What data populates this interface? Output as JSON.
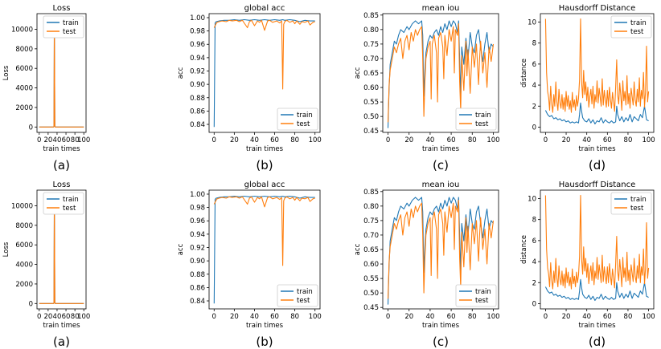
{
  "figure": {
    "colors": {
      "train": "#1f77b4",
      "test": "#ff7f0e"
    },
    "rows": 2,
    "note": "Figure contains two identical rows of four panels"
  },
  "chart_data": [
    {
      "type": "line",
      "panel": "loss",
      "title": "Loss",
      "caption": "(a)",
      "xlabel": "train times",
      "ylabel": "Loss",
      "xlim": [
        -5,
        105
      ],
      "ylim": [
        -550,
        11600
      ],
      "xticks": [
        0,
        20,
        40,
        60,
        80,
        100
      ],
      "xtick_labels": [
        "0",
        "20",
        "40",
        "60",
        "80",
        "100"
      ],
      "yticks": [
        0,
        2000,
        4000,
        6000,
        8000,
        10000
      ],
      "ytick_labels": [
        "0",
        "2000",
        "4000",
        "6000",
        "8000",
        "10000"
      ],
      "legend": {
        "position": "upper-right",
        "entries": [
          "train",
          "test"
        ]
      },
      "series": [
        {
          "name": "train",
          "x": [
            0,
            32,
            33,
            34,
            35,
            36,
            37,
            100
          ],
          "y": [
            0,
            0,
            40,
            11000,
            60,
            0,
            0,
            0
          ]
        },
        {
          "name": "test",
          "x": [
            0,
            32,
            33,
            34,
            35,
            36,
            37,
            100
          ],
          "y": [
            0,
            0,
            60,
            11000,
            80,
            0,
            0,
            0
          ]
        }
      ]
    },
    {
      "type": "line",
      "panel": "global-acc",
      "title": "global acc",
      "caption": "(b)",
      "xlabel": "train times",
      "ylabel": "acc",
      "xlim": [
        -5,
        105
      ],
      "ylim": [
        0.828,
        1.006
      ],
      "xticks": [
        0,
        20,
        40,
        60,
        80,
        100
      ],
      "xtick_labels": [
        "0",
        "20",
        "40",
        "60",
        "80",
        "100"
      ],
      "yticks": [
        0.84,
        0.86,
        0.88,
        0.9,
        0.92,
        0.94,
        0.96,
        0.98,
        1.0
      ],
      "ytick_labels": [
        "0.84",
        "0.86",
        "0.88",
        "0.90",
        "0.92",
        "0.94",
        "0.96",
        "0.98",
        "1.00"
      ],
      "legend": {
        "position": "lower-right",
        "entries": [
          "train",
          "test"
        ]
      },
      "series": [
        {
          "name": "train",
          "x": [
            0,
            1,
            2,
            5,
            10,
            15,
            20,
            25,
            30,
            35,
            40,
            45,
            50,
            55,
            60,
            65,
            68,
            70,
            75,
            80,
            85,
            90,
            95,
            100
          ],
          "y": [
            0.836,
            0.992,
            0.994,
            0.995,
            0.996,
            0.996,
            0.997,
            0.996,
            0.997,
            0.996,
            0.997,
            0.996,
            0.997,
            0.996,
            0.997,
            0.996,
            0.997,
            0.996,
            0.997,
            0.996,
            0.994,
            0.996,
            0.995,
            0.995
          ]
        },
        {
          "name": "test",
          "x": [
            0,
            2,
            3,
            5,
            8,
            12,
            15,
            18,
            22,
            25,
            28,
            33,
            35,
            37,
            40,
            43,
            45,
            47,
            50,
            53,
            55,
            58,
            62,
            65,
            67,
            68,
            69,
            70,
            72,
            75,
            78,
            80,
            82,
            85,
            87,
            90,
            93,
            95,
            98,
            100
          ],
          "y": [
            0.985,
            0.991,
            0.993,
            0.994,
            0.995,
            0.994,
            0.996,
            0.995,
            0.996,
            0.994,
            0.996,
            0.985,
            0.994,
            0.996,
            0.988,
            0.995,
            0.993,
            0.996,
            0.981,
            0.995,
            0.996,
            0.993,
            0.995,
            0.992,
            0.995,
            0.893,
            0.99,
            0.994,
            0.996,
            0.993,
            0.995,
            0.991,
            0.995,
            0.99,
            0.994,
            0.993,
            0.995,
            0.989,
            0.993,
            0.994
          ]
        }
      ]
    },
    {
      "type": "line",
      "panel": "mean-iou",
      "title": "mean iou",
      "caption": "(c)",
      "xlabel": "train times",
      "ylabel": "acc",
      "xlim": [
        -5,
        105
      ],
      "ylim": [
        0.445,
        0.855
      ],
      "xticks": [
        0,
        20,
        40,
        60,
        80,
        100
      ],
      "xtick_labels": [
        "0",
        "20",
        "40",
        "60",
        "80",
        "100"
      ],
      "yticks": [
        0.45,
        0.5,
        0.55,
        0.6,
        0.65,
        0.7,
        0.75,
        0.8,
        0.85
      ],
      "ytick_labels": [
        "0.45",
        "0.50",
        "0.55",
        "0.60",
        "0.65",
        "0.70",
        "0.75",
        "0.80",
        "0.85"
      ],
      "legend": {
        "position": "lower-right",
        "entries": [
          "train",
          "test"
        ]
      },
      "series": [
        {
          "name": "train",
          "x": [
            0,
            1,
            2,
            4,
            6,
            8,
            10,
            12,
            15,
            18,
            20,
            23,
            26,
            29,
            32,
            33,
            34,
            35,
            36,
            38,
            40,
            42,
            44,
            46,
            48,
            50,
            52,
            54,
            56,
            58,
            60,
            62,
            64,
            66,
            67,
            68,
            69,
            70,
            72,
            74,
            76,
            78,
            80,
            82,
            84,
            86,
            88,
            90,
            92,
            94,
            96,
            98,
            100
          ],
          "y": [
            0.46,
            0.6,
            0.68,
            0.72,
            0.76,
            0.75,
            0.78,
            0.8,
            0.79,
            0.81,
            0.8,
            0.82,
            0.83,
            0.82,
            0.83,
            0.78,
            0.57,
            0.66,
            0.72,
            0.76,
            0.78,
            0.77,
            0.79,
            0.8,
            0.78,
            0.81,
            0.79,
            0.82,
            0.8,
            0.83,
            0.81,
            0.83,
            0.82,
            0.79,
            0.83,
            0.7,
            0.57,
            0.74,
            0.68,
            0.77,
            0.7,
            0.79,
            0.74,
            0.72,
            0.78,
            0.8,
            0.74,
            0.69,
            0.75,
            0.79,
            0.72,
            0.75,
            0.74
          ]
        },
        {
          "name": "test",
          "x": [
            0,
            1,
            2,
            4,
            6,
            8,
            10,
            12,
            14,
            16,
            18,
            20,
            22,
            24,
            26,
            28,
            30,
            32,
            33,
            34,
            35,
            36,
            38,
            40,
            41,
            42,
            44,
            46,
            47,
            48,
            50,
            52,
            53,
            54,
            56,
            58,
            60,
            62,
            63,
            64,
            66,
            67,
            68,
            69,
            70,
            72,
            74,
            75,
            76,
            78,
            80,
            82,
            84,
            86,
            87,
            88,
            90,
            92,
            94,
            96,
            98,
            100
          ],
          "y": [
            0.48,
            0.61,
            0.66,
            0.7,
            0.74,
            0.72,
            0.75,
            0.77,
            0.7,
            0.76,
            0.78,
            0.73,
            0.79,
            0.76,
            0.8,
            0.78,
            0.8,
            0.81,
            0.7,
            0.5,
            0.62,
            0.7,
            0.74,
            0.76,
            0.56,
            0.75,
            0.78,
            0.72,
            0.55,
            0.77,
            0.79,
            0.74,
            0.63,
            0.78,
            0.71,
            0.8,
            0.76,
            0.81,
            0.65,
            0.8,
            0.78,
            0.82,
            0.62,
            0.52,
            0.71,
            0.59,
            0.76,
            0.64,
            0.73,
            0.58,
            0.74,
            0.67,
            0.75,
            0.61,
            0.7,
            0.76,
            0.65,
            0.72,
            0.6,
            0.74,
            0.69,
            0.75
          ]
        }
      ]
    },
    {
      "type": "line",
      "panel": "hausdorff",
      "title": "Hausdorff Distance",
      "caption": "(d)",
      "xlabel": "train times",
      "ylabel": "distance",
      "xlim": [
        -5,
        105
      ],
      "ylim": [
        -0.5,
        10.8
      ],
      "xticks": [
        0,
        20,
        40,
        60,
        80,
        100
      ],
      "xtick_labels": [
        "0",
        "20",
        "40",
        "60",
        "80",
        "100"
      ],
      "yticks": [
        0,
        2,
        4,
        6,
        8,
        10
      ],
      "ytick_labels": [
        "0",
        "2",
        "4",
        "6",
        "8",
        "10"
      ],
      "legend": {
        "position": "upper-right",
        "entries": [
          "train",
          "test"
        ]
      },
      "series": [
        {
          "name": "train",
          "x": [
            0,
            2,
            4,
            6,
            8,
            10,
            12,
            14,
            16,
            18,
            20,
            22,
            24,
            26,
            28,
            30,
            32,
            33,
            34,
            35,
            36,
            38,
            40,
            42,
            44,
            46,
            48,
            50,
            52,
            54,
            56,
            58,
            60,
            62,
            64,
            66,
            68,
            69,
            70,
            72,
            74,
            76,
            78,
            80,
            82,
            84,
            86,
            88,
            90,
            92,
            94,
            96,
            98,
            100
          ],
          "y": [
            1.6,
            1.2,
            1.0,
            1.1,
            0.8,
            0.9,
            0.7,
            0.8,
            0.6,
            0.7,
            0.5,
            0.6,
            0.4,
            0.5,
            0.4,
            0.5,
            0.4,
            1.2,
            2.3,
            1.5,
            0.9,
            0.6,
            0.5,
            0.8,
            0.4,
            0.7,
            0.3,
            0.6,
            0.5,
            0.9,
            0.4,
            0.7,
            0.5,
            0.4,
            0.6,
            0.4,
            0.5,
            2.0,
            1.2,
            0.6,
            1.0,
            0.5,
            0.9,
            0.6,
            1.2,
            0.5,
            1.0,
            0.8,
            0.6,
            1.2,
            0.9,
            2.0,
            0.7,
            0.6
          ]
        },
        {
          "name": "test",
          "x": [
            0,
            1,
            2,
            3,
            4,
            5,
            6,
            7,
            8,
            9,
            10,
            11,
            12,
            13,
            14,
            15,
            16,
            17,
            18,
            19,
            20,
            21,
            22,
            23,
            24,
            25,
            26,
            27,
            28,
            29,
            30,
            31,
            32,
            33,
            34,
            35,
            36,
            37,
            38,
            39,
            40,
            41,
            42,
            43,
            44,
            45,
            46,
            47,
            48,
            49,
            50,
            51,
            52,
            53,
            54,
            55,
            56,
            57,
            58,
            59,
            60,
            61,
            62,
            63,
            64,
            65,
            66,
            67,
            68,
            69,
            70,
            71,
            72,
            73,
            74,
            75,
            76,
            77,
            78,
            79,
            80,
            81,
            82,
            83,
            84,
            85,
            86,
            87,
            88,
            89,
            90,
            91,
            92,
            93,
            94,
            95,
            96,
            97,
            98,
            99,
            100
          ],
          "y": [
            10.3,
            5.2,
            3.4,
            2.8,
            1.6,
            3.9,
            2.2,
            1.4,
            3.1,
            2.0,
            4.3,
            2.4,
            1.6,
            3.6,
            2.3,
            1.8,
            3.1,
            1.7,
            2.8,
            1.5,
            3.4,
            2.0,
            3.0,
            1.7,
            2.5,
            1.4,
            3.3,
            1.9,
            2.6,
            1.6,
            3.0,
            2.0,
            2.7,
            4.5,
            10.3,
            4.2,
            2.8,
            5.4,
            3.1,
            4.3,
            2.5,
            3.8,
            1.9,
            2.9,
            3.6,
            2.2,
            3.9,
            1.8,
            3.1,
            2.4,
            4.4,
            2.3,
            3.7,
            2.9,
            2.0,
            4.6,
            2.1,
            3.5,
            2.6,
            1.9,
            3.5,
            2.0,
            3.8,
            2.6,
            1.8,
            3.3,
            2.4,
            1.5,
            3.8,
            6.4,
            3.1,
            2.2,
            4.2,
            3.0,
            1.6,
            4.4,
            2.5,
            3.4,
            2.1,
            4.9,
            2.2,
            3.2,
            1.8,
            3.7,
            2.9,
            2.1,
            4.3,
            2.6,
            2.0,
            3.6,
            2.4,
            4.7,
            2.0,
            3.5,
            2.7,
            5.2,
            1.9,
            3.3,
            7.7,
            2.4,
            3.4
          ]
        }
      ]
    }
  ]
}
